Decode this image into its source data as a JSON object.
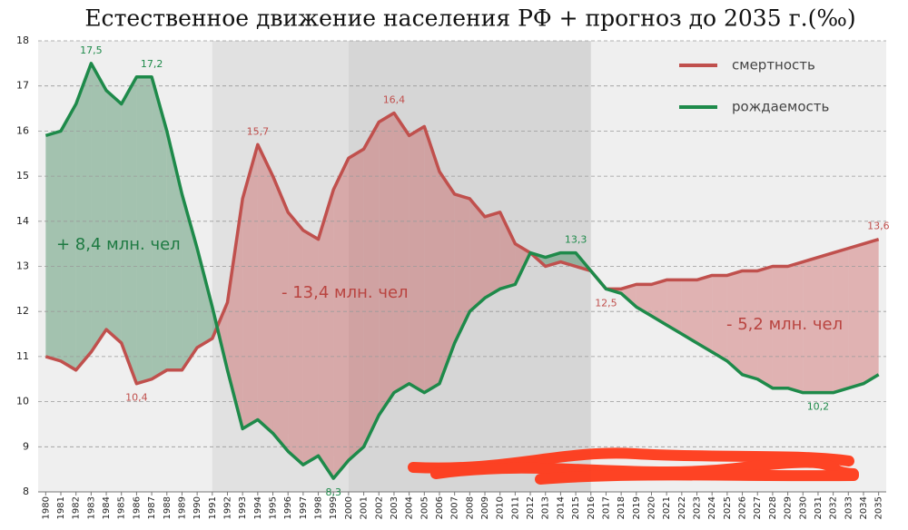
{
  "chart_data": {
    "type": "line",
    "title": "Естественное движение населения РФ + прогноз до 2035 г.(‰)",
    "x": [
      1980,
      1981,
      1982,
      1983,
      1984,
      1985,
      1986,
      1987,
      1988,
      1989,
      1990,
      1991,
      1992,
      1993,
      1994,
      1995,
      1996,
      1997,
      1998,
      1999,
      2000,
      2001,
      2002,
      2003,
      2004,
      2005,
      2006,
      2007,
      2008,
      2009,
      2010,
      2011,
      2012,
      2013,
      2014,
      2015,
      2016,
      2017,
      2018,
      2019,
      2020,
      2021,
      2022,
      2023,
      2024,
      2025,
      2026,
      2027,
      2028,
      2029,
      2030,
      2031,
      2032,
      2033,
      2034,
      2035
    ],
    "xlim": [
      1979.5,
      2035.5
    ],
    "ylim": [
      8,
      18
    ],
    "yticks": [
      8,
      9,
      10,
      11,
      12,
      13,
      14,
      15,
      16,
      17,
      18
    ],
    "grid": true,
    "legend": "top-right",
    "shaded_spans": [
      {
        "from": 1991,
        "to": 2000,
        "color": "#e1e1e1"
      },
      {
        "from": 2000,
        "to": 2016,
        "color": "#d6d6d6"
      }
    ],
    "series": [
      {
        "name": "смертность",
        "color": "#c0504d",
        "values": [
          11.0,
          10.9,
          10.7,
          11.1,
          11.6,
          11.3,
          10.4,
          10.5,
          10.7,
          10.7,
          11.2,
          11.4,
          12.2,
          14.5,
          15.7,
          15.0,
          14.2,
          13.8,
          13.6,
          14.7,
          15.4,
          15.6,
          16.2,
          16.4,
          15.9,
          16.1,
          15.1,
          14.6,
          14.5,
          14.1,
          14.2,
          13.5,
          13.3,
          13.0,
          13.1,
          13.0,
          12.9,
          12.5,
          12.5,
          12.6,
          12.6,
          12.7,
          12.7,
          12.7,
          12.8,
          12.8,
          12.9,
          12.9,
          13.0,
          13.0,
          13.1,
          13.2,
          13.3,
          13.4,
          13.5,
          13.6
        ],
        "value_labels": [
          null,
          null,
          null,
          null,
          null,
          null,
          "10,4",
          null,
          null,
          null,
          null,
          null,
          null,
          null,
          "15,7",
          null,
          null,
          null,
          null,
          null,
          null,
          null,
          null,
          "16,4",
          null,
          null,
          null,
          null,
          null,
          null,
          null,
          null,
          null,
          null,
          null,
          null,
          null,
          "12,5",
          null,
          null,
          null,
          null,
          null,
          null,
          null,
          null,
          null,
          null,
          null,
          null,
          null,
          null,
          null,
          null,
          null,
          "13,6"
        ]
      },
      {
        "name": "рождаемость",
        "color": "#1e8a4a",
        "values": [
          15.9,
          16.0,
          16.6,
          17.5,
          16.9,
          16.6,
          17.2,
          17.2,
          16.0,
          14.6,
          13.4,
          12.1,
          10.7,
          9.4,
          9.6,
          9.3,
          8.9,
          8.6,
          8.8,
          8.3,
          8.7,
          9.0,
          9.7,
          10.2,
          10.4,
          10.2,
          10.4,
          11.3,
          12.0,
          12.3,
          12.5,
          12.6,
          13.3,
          13.2,
          13.3,
          13.3,
          12.9,
          12.5,
          12.4,
          12.1,
          11.9,
          11.7,
          11.5,
          11.3,
          11.1,
          10.9,
          10.6,
          10.5,
          10.3,
          10.3,
          10.2,
          10.2,
          10.2,
          10.3,
          10.4,
          10.6
        ],
        "value_labels": [
          null,
          null,
          null,
          "17,5",
          null,
          null,
          null,
          "17,2",
          null,
          null,
          null,
          null,
          null,
          null,
          null,
          null,
          null,
          null,
          null,
          "8,3",
          null,
          null,
          null,
          null,
          null,
          null,
          null,
          null,
          null,
          null,
          null,
          null,
          null,
          null,
          null,
          "13,3",
          null,
          null,
          null,
          null,
          null,
          null,
          null,
          null,
          null,
          null,
          null,
          null,
          null,
          null,
          null,
          "10,2",
          null,
          null,
          null,
          null
        ]
      }
    ],
    "annotations": [
      "+ 8,4 млн. чел",
      "- 13,4 млн. чел",
      "- 5,2 млн. чел"
    ]
  }
}
